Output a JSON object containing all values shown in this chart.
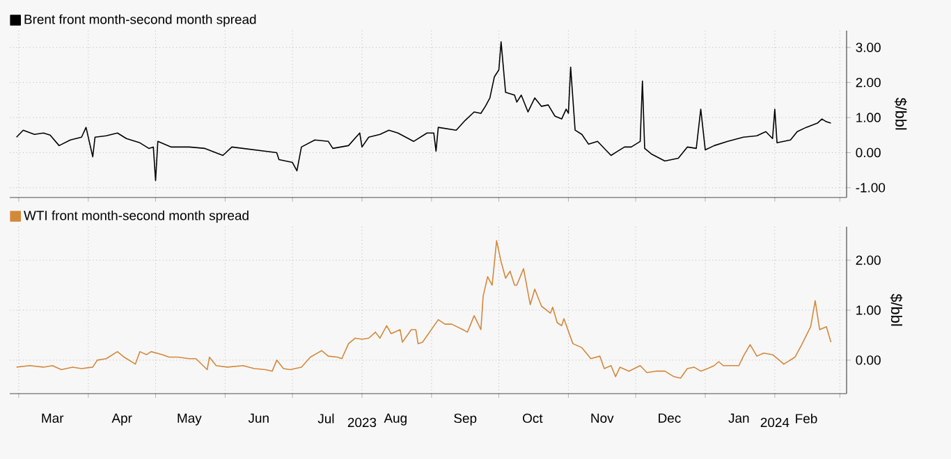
{
  "chart_data": [
    {
      "type": "line",
      "ylabel": "$/bbl",
      "grid": true,
      "legend": "top left",
      "tick_labels": "y",
      "xlim": [
        "2023-02-25",
        "2024-03-04"
      ],
      "xticks": [
        {
          "value": "2023-03-01",
          "label": null
        },
        {
          "value": "2023-04-01",
          "label": null
        },
        {
          "value": "2023-05-01",
          "label": null
        },
        {
          "value": "2023-06-01",
          "label": null
        },
        {
          "value": "2023-07-01",
          "label": null
        },
        {
          "value": "2023-08-01",
          "label": null
        },
        {
          "value": "2023-09-01",
          "label": null
        },
        {
          "value": "2023-10-01",
          "label": null
        },
        {
          "value": "2023-11-01",
          "label": null
        },
        {
          "value": "2023-12-01",
          "label": null
        },
        {
          "value": "2024-01-01",
          "label": null
        },
        {
          "value": "2024-02-01",
          "label": null
        },
        {
          "value": "2024-03-01",
          "label": null
        }
      ],
      "ylim": [
        -1.28,
        3.48
      ],
      "yticks": [
        {
          "value": -1,
          "label": "-1.00"
        },
        {
          "value": 0,
          "label": "0.00"
        },
        {
          "value": 1,
          "label": "1.00"
        },
        {
          "value": 2,
          "label": "2.00"
        },
        {
          "value": 3,
          "label": "3.00"
        }
      ],
      "x": [
        "2023-02-28",
        "2023-03-03",
        "2023-03-08",
        "2023-03-12",
        "2023-03-15",
        "2023-03-19",
        "2023-03-24",
        "2023-03-29",
        "2023-03-31",
        "2023-04-03",
        "2023-04-04",
        "2023-04-09",
        "2023-04-14",
        "2023-04-18",
        "2023-04-24",
        "2023-04-28",
        "2023-04-30",
        "2023-05-01",
        "2023-05-02",
        "2023-05-08",
        "2023-05-16",
        "2023-05-23",
        "2023-05-31",
        "2023-06-04",
        "2023-06-14",
        "2023-06-24",
        "2023-06-25",
        "2023-07-01",
        "2023-07-03",
        "2023-07-05",
        "2023-07-11",
        "2023-07-17",
        "2023-07-19",
        "2023-07-26",
        "2023-07-31",
        "2023-08-01",
        "2023-08-04",
        "2023-08-09",
        "2023-08-13",
        "2023-08-17",
        "2023-08-24",
        "2023-08-30",
        "2023-09-02",
        "2023-09-03",
        "2023-09-04",
        "2023-09-12",
        "2023-09-16",
        "2023-09-20",
        "2023-09-23",
        "2023-09-25",
        "2023-09-27",
        "2023-09-29",
        "2023-10-01",
        "2023-10-02",
        "2023-10-04",
        "2023-10-08",
        "2023-10-09",
        "2023-10-11",
        "2023-10-14",
        "2023-10-17",
        "2023-10-20",
        "2023-10-23",
        "2023-10-26",
        "2023-10-29",
        "2023-10-31",
        "2023-11-01",
        "2023-11-02",
        "2023-11-04",
        "2023-11-07",
        "2023-11-10",
        "2023-11-14",
        "2023-11-20",
        "2023-11-23",
        "2023-11-26",
        "2023-11-29",
        "2023-12-03",
        "2023-12-04",
        "2023-12-05",
        "2023-12-08",
        "2023-12-14",
        "2023-12-20",
        "2023-12-24",
        "2023-12-28",
        "2023-12-30",
        "2024-01-01",
        "2024-01-05",
        "2024-01-11",
        "2024-01-18",
        "2024-01-24",
        "2024-01-28",
        "2024-01-31",
        "2024-02-01",
        "2024-02-02",
        "2024-02-08",
        "2024-02-11",
        "2024-02-15",
        "2024-02-20",
        "2024-02-22",
        "2024-02-24",
        "2024-02-26"
      ],
      "series": [
        {
          "name": "Brent front month-second month spread",
          "color": "#000000",
          "values": [
            0.44,
            0.64,
            0.52,
            0.56,
            0.5,
            0.2,
            0.36,
            0.44,
            0.72,
            -0.12,
            0.44,
            0.48,
            0.56,
            0.4,
            0.28,
            0.12,
            0.16,
            -0.8,
            0.32,
            0.16,
            0.16,
            0.12,
            -0.08,
            0.16,
            0.08,
            0.0,
            -0.2,
            -0.28,
            -0.52,
            0.16,
            0.36,
            0.32,
            0.12,
            0.2,
            0.56,
            0.16,
            0.44,
            0.52,
            0.64,
            0.56,
            0.32,
            0.56,
            0.56,
            0.04,
            0.72,
            0.64,
            0.92,
            1.16,
            1.12,
            1.32,
            1.56,
            2.16,
            2.36,
            3.16,
            1.72,
            1.64,
            1.44,
            1.64,
            1.16,
            1.56,
            1.32,
            1.36,
            1.04,
            0.96,
            1.24,
            1.12,
            2.44,
            0.64,
            0.52,
            0.24,
            0.32,
            -0.08,
            0.04,
            0.16,
            0.16,
            0.32,
            2.04,
            0.12,
            -0.04,
            -0.24,
            -0.16,
            0.16,
            0.12,
            1.24,
            0.08,
            0.2,
            0.32,
            0.44,
            0.48,
            0.6,
            0.4,
            1.24,
            0.28,
            0.36,
            0.6,
            0.72,
            0.84,
            0.96,
            0.88,
            0.84
          ]
        }
      ]
    },
    {
      "type": "line",
      "ylabel": "$/bbl",
      "grid": true,
      "legend": "top left",
      "xlim": [
        "2023-02-25",
        "2024-03-04"
      ],
      "xticks": [
        {
          "value": "2023-03-01",
          "label": null
        },
        {
          "value": "2023-03-16",
          "label": "Mar"
        },
        {
          "value": "2023-04-01",
          "label": null
        },
        {
          "value": "2023-04-16",
          "label": "Apr"
        },
        {
          "value": "2023-05-01",
          "label": null
        },
        {
          "value": "2023-05-16",
          "label": "May"
        },
        {
          "value": "2023-06-01",
          "label": null
        },
        {
          "value": "2023-06-16",
          "label": "Jun"
        },
        {
          "value": "2023-07-01",
          "label": null
        },
        {
          "value": "2023-07-16",
          "label": "Jul"
        },
        {
          "value": "2023-08-01",
          "label": "2023"
        },
        {
          "value": "2023-08-16",
          "label": "Aug"
        },
        {
          "value": "2023-09-01",
          "label": null
        },
        {
          "value": "2023-09-16",
          "label": "Sep"
        },
        {
          "value": "2023-10-01",
          "label": null
        },
        {
          "value": "2023-10-16",
          "label": "Oct"
        },
        {
          "value": "2023-11-01",
          "label": null
        },
        {
          "value": "2023-11-16",
          "label": "Nov"
        },
        {
          "value": "2023-12-01",
          "label": null
        },
        {
          "value": "2023-12-16",
          "label": "Dec"
        },
        {
          "value": "2024-01-01",
          "label": null
        },
        {
          "value": "2024-01-16",
          "label": "Jan"
        },
        {
          "value": "2024-02-01",
          "label": "2024"
        },
        {
          "value": "2024-02-15",
          "label": "Feb"
        },
        {
          "value": "2024-03-01",
          "label": null
        }
      ],
      "ylim": [
        -0.67,
        2.67
      ],
      "yticks": [
        {
          "value": 0,
          "label": "0.00"
        },
        {
          "value": 1,
          "label": "1.00"
        },
        {
          "value": 2,
          "label": "2.00"
        }
      ],
      "x": [
        "2023-02-28",
        "2023-03-06",
        "2023-03-12",
        "2023-03-16",
        "2023-03-20",
        "2023-03-25",
        "2023-03-29",
        "2023-04-03",
        "2023-04-05",
        "2023-04-09",
        "2023-04-14",
        "2023-04-17",
        "2023-04-22",
        "2023-04-24",
        "2023-04-27",
        "2023-04-29",
        "2023-05-04",
        "2023-05-07",
        "2023-05-11",
        "2023-05-16",
        "2023-05-19",
        "2023-05-24",
        "2023-05-25",
        "2023-05-28",
        "2023-06-02",
        "2023-06-09",
        "2023-06-14",
        "2023-06-19",
        "2023-06-22",
        "2023-06-24",
        "2023-06-27",
        "2023-06-30",
        "2023-07-05",
        "2023-07-09",
        "2023-07-14",
        "2023-07-17",
        "2023-07-21",
        "2023-07-23",
        "2023-07-26",
        "2023-07-29",
        "2023-08-01",
        "2023-08-04",
        "2023-08-07",
        "2023-08-09",
        "2023-08-12",
        "2023-08-14",
        "2023-08-18",
        "2023-08-19",
        "2023-08-23",
        "2023-08-25",
        "2023-08-26",
        "2023-08-28",
        "2023-09-04",
        "2023-09-07",
        "2023-09-10",
        "2023-09-15",
        "2023-09-17",
        "2023-09-20",
        "2023-09-23",
        "2023-09-24",
        "2023-09-26",
        "2023-09-28",
        "2023-09-30",
        "2023-10-02",
        "2023-10-04",
        "2023-10-06",
        "2023-10-08",
        "2023-10-09",
        "2023-10-12",
        "2023-10-15",
        "2023-10-17",
        "2023-10-20",
        "2023-10-24",
        "2023-10-25",
        "2023-10-27",
        "2023-10-29",
        "2023-10-30",
        "2023-11-03",
        "2023-11-07",
        "2023-11-11",
        "2023-11-15",
        "2023-11-17",
        "2023-11-20",
        "2023-11-22",
        "2023-11-24",
        "2023-11-28",
        "2023-12-03",
        "2023-12-06",
        "2023-12-10",
        "2023-12-14",
        "2023-12-18",
        "2023-12-21",
        "2023-12-24",
        "2023-12-27",
        "2023-12-30",
        "2024-01-02",
        "2024-01-05",
        "2024-01-07",
        "2024-01-09",
        "2024-01-13",
        "2024-01-16",
        "2024-01-18",
        "2024-01-21",
        "2024-01-24",
        "2024-01-27",
        "2024-01-31",
        "2024-02-03",
        "2024-02-05",
        "2024-02-10",
        "2024-02-13",
        "2024-02-17",
        "2024-02-19",
        "2024-02-21",
        "2024-02-24",
        "2024-02-26"
      ],
      "series": [
        {
          "name": "WTI front month-second month spread",
          "color": "#d4883a",
          "values": [
            -0.14,
            -0.11,
            -0.14,
            -0.11,
            -0.19,
            -0.14,
            -0.17,
            -0.14,
            0.0,
            0.03,
            0.17,
            0.06,
            -0.08,
            0.17,
            0.11,
            0.17,
            0.11,
            0.06,
            0.06,
            0.03,
            0.03,
            -0.19,
            0.06,
            -0.11,
            -0.14,
            -0.11,
            -0.17,
            -0.19,
            -0.22,
            0.0,
            -0.17,
            -0.19,
            -0.14,
            0.06,
            0.19,
            0.08,
            0.06,
            0.03,
            0.33,
            0.44,
            0.42,
            0.44,
            0.56,
            0.44,
            0.69,
            0.53,
            0.61,
            0.36,
            0.61,
            0.61,
            0.33,
            0.36,
            0.81,
            0.72,
            0.72,
            0.61,
            0.56,
            0.89,
            0.61,
            1.28,
            1.67,
            1.5,
            2.39,
            1.97,
            1.64,
            1.78,
            1.5,
            1.5,
            1.83,
            1.11,
            1.42,
            1.08,
            0.94,
            1.06,
            0.75,
            0.69,
            0.83,
            0.33,
            0.25,
            0.03,
            0.08,
            -0.17,
            -0.11,
            -0.33,
            -0.14,
            -0.22,
            -0.11,
            -0.25,
            -0.22,
            -0.22,
            -0.33,
            -0.36,
            -0.17,
            -0.14,
            -0.22,
            -0.17,
            -0.11,
            -0.03,
            -0.11,
            -0.11,
            -0.11,
            0.08,
            0.31,
            0.08,
            0.14,
            0.11,
            0.0,
            -0.08,
            0.06,
            0.31,
            0.67,
            1.19,
            0.61,
            0.67,
            0.36
          ]
        }
      ]
    }
  ]
}
